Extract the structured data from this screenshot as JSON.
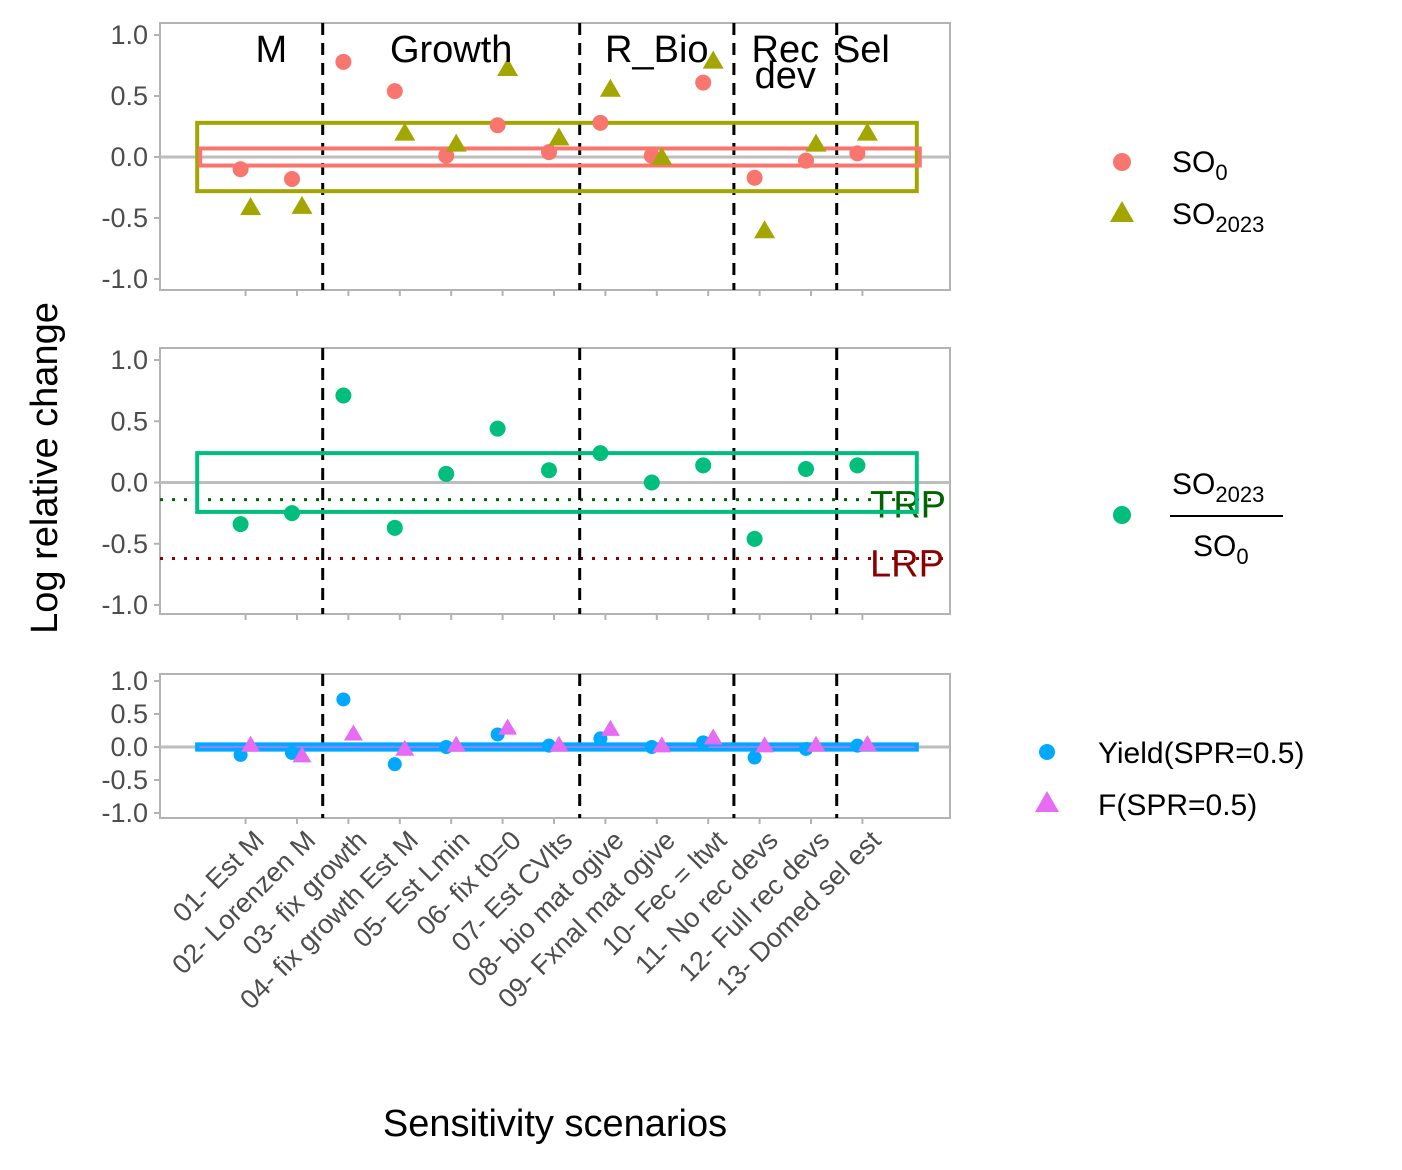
{
  "chart_data": {
    "type": "scatter",
    "xlabel": "Sensitivity scenarios",
    "ylabel": "Log relative change",
    "ylim": [
      -1.0,
      1.0
    ],
    "yticks": [
      "1.0",
      "0.5",
      "0.0",
      "-0.5",
      "-1.0"
    ],
    "categories": [
      "01- Est M",
      "02- Lorenzen M",
      "03- fix growth",
      "04- fix growth Est M",
      "05- Est Lmin",
      "06- fix t0=0",
      "07- Est CVlts",
      "08- bio mat ogive",
      "09- Fxnal mat ogive",
      "10- Fec = ltwt",
      "11- No rec devs",
      "12- Full rec devs",
      "13- Domed sel est"
    ],
    "groups": [
      {
        "label": "M",
        "line2": "",
        "span": [
          1,
          2
        ]
      },
      {
        "label": "Growth",
        "line2": "",
        "span": [
          3,
          7
        ]
      },
      {
        "label": "R_Bio",
        "line2": "",
        "span": [
          8,
          10
        ]
      },
      {
        "label": "Rec",
        "line2": "dev",
        "span": [
          11,
          12
        ]
      },
      {
        "label": "Sel",
        "line2": "",
        "span": [
          13,
          13
        ]
      }
    ],
    "panels": [
      {
        "id": "top",
        "series": [
          {
            "name": "SO0",
            "color": "#F8766D",
            "marker": "circle",
            "values": [
              -0.1,
              -0.18,
              0.78,
              0.54,
              0.01,
              0.26,
              0.04,
              0.28,
              0.01,
              0.61,
              -0.17,
              -0.03,
              0.03
            ],
            "band": 0.07
          },
          {
            "name": "SO2023",
            "color": "#A3A500",
            "marker": "triangle",
            "values": [
              -0.42,
              -0.41,
              null,
              0.19,
              0.1,
              0.72,
              0.15,
              0.55,
              -0.01,
              0.78,
              -0.61,
              0.1,
              0.19
            ],
            "band": 0.28
          }
        ]
      },
      {
        "id": "middle",
        "series": [
          {
            "name": "SO2023/SO0",
            "color": "#00BF7D",
            "marker": "circle",
            "values": [
              -0.34,
              -0.25,
              0.71,
              -0.37,
              0.07,
              0.44,
              0.1,
              0.24,
              0.0,
              0.14,
              -0.46,
              0.11,
              0.14
            ],
            "band": 0.24
          }
        ],
        "reference_lines": [
          {
            "label": "TRP",
            "value": -0.14,
            "color": "#006400"
          },
          {
            "label": "LRP",
            "value": -0.62,
            "color": "#8B0000"
          }
        ]
      },
      {
        "id": "bottom",
        "series": [
          {
            "name": "Yield(SPR=0.5)",
            "color": "#00A9FF",
            "marker": "circle",
            "values": [
              -0.12,
              -0.09,
              0.72,
              -0.26,
              0.0,
              0.19,
              0.02,
              0.13,
              0.0,
              0.07,
              -0.16,
              -0.03,
              0.02
            ],
            "band": 0.04
          },
          {
            "name": "F(SPR=0.5)",
            "color": "#E76BF3",
            "marker": "triangle",
            "values": [
              0.02,
              -0.14,
              0.19,
              -0.04,
              0.02,
              0.28,
              0.02,
              0.26,
              0.01,
              0.13,
              0.01,
              0.02,
              0.03
            ],
            "band": 0.02
          }
        ]
      }
    ],
    "legend": {
      "placement": "right",
      "top": [
        {
          "base": "SO",
          "sub": "0",
          "color": "#F8766D",
          "marker": "circle"
        },
        {
          "base": "SO",
          "sub": "2023",
          "color": "#A3A500",
          "marker": "triangle"
        }
      ],
      "middle": {
        "num_base": "SO",
        "num_sub": "2023",
        "den_base": "SO",
        "den_sub": "0",
        "color": "#00BF7D",
        "marker": "circle"
      },
      "bottom": [
        {
          "label": "Yield(SPR=0.5)",
          "color": "#00A9FF",
          "marker": "circle"
        },
        {
          "label": "F(SPR=0.5)",
          "color": "#E76BF3",
          "marker": "triangle"
        }
      ]
    }
  }
}
